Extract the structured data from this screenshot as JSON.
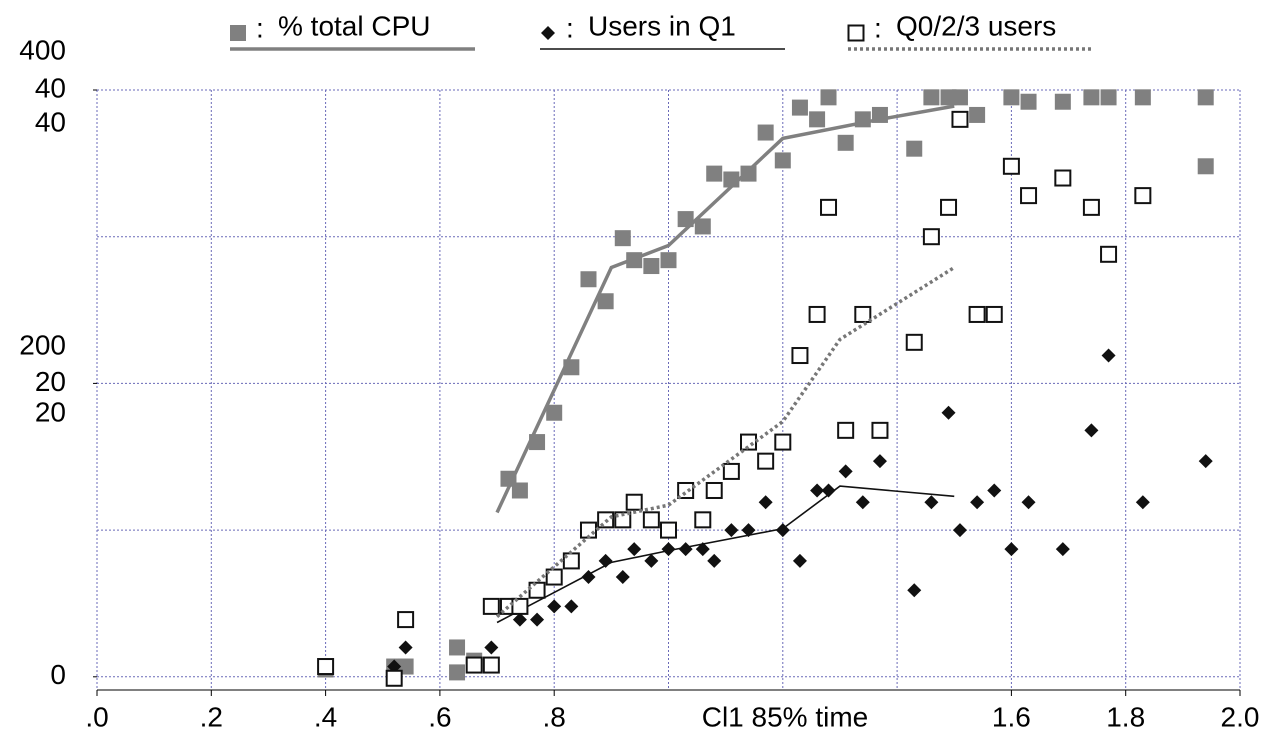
{
  "chart_data": {
    "type": "scatter",
    "xlabel": "Cl1 85% time",
    "xlim": [
      0,
      2
    ],
    "xticks": [
      {
        "value": 0,
        "label": ".0"
      },
      {
        "value": 0.2,
        "label": ".2"
      },
      {
        "value": 0.4,
        "label": ".4"
      },
      {
        "value": 0.6,
        "label": ".6"
      },
      {
        "value": 0.8,
        "label": ".8"
      },
      1.6,
      1.8,
      {
        "value": 2,
        "label": "2.0"
      }
    ],
    "xgrid": [
      0,
      0.2,
      0.4,
      0.6,
      0.8,
      1.0,
      1.2,
      1.4,
      1.6,
      1.8,
      2.0
    ],
    "ylim": [
      -0.9,
      40
    ],
    "yticks": [
      0,
      20,
      40
    ],
    "ygrid": [
      0,
      10,
      20,
      30,
      40
    ],
    "annotations": [
      "400",
      "40",
      "200",
      "20"
    ],
    "legend_separator": ":",
    "series": [
      {
        "name": "% total CPU",
        "color": "#808080",
        "marker": "square-filled",
        "trend_style": "solid-thick",
        "x": [
          0.4,
          0.52,
          0.54,
          0.63,
          0.63,
          0.66,
          0.72,
          0.74,
          0.77,
          0.8,
          0.83,
          0.86,
          0.89,
          0.92,
          0.94,
          0.97,
          1.0,
          1.03,
          1.06,
          1.08,
          1.11,
          1.14,
          1.17,
          1.2,
          1.23,
          1.26,
          1.28,
          1.31,
          1.34,
          1.37,
          1.43,
          1.46,
          1.49,
          1.51,
          1.54,
          1.6,
          1.63,
          1.69,
          1.74,
          1.77,
          1.83,
          1.94,
          1.94
        ],
        "values": [
          0.5,
          0.7,
          0.7,
          2.0,
          0.3,
          1.1,
          13.5,
          12.7,
          16.0,
          18.0,
          21.1,
          27.1,
          25.6,
          29.9,
          28.4,
          28.0,
          28.4,
          31.2,
          30.7,
          34.3,
          33.9,
          34.3,
          37.1,
          35.2,
          38.8,
          38.0,
          39.5,
          36.4,
          38.0,
          38.3,
          36.0,
          39.5,
          39.5,
          39.5,
          38.3,
          39.5,
          39.2,
          39.2,
          39.5,
          39.5,
          39.5,
          39.5,
          34.8
        ],
        "trend": {
          "x": [
            0.7,
            0.9,
            1.0,
            1.2,
            1.37,
            1.5
          ],
          "values": [
            11.2,
            27.9,
            29.4,
            36.7,
            38.0,
            38.9
          ]
        }
      },
      {
        "name": "Users in Q1",
        "color": "#111111",
        "marker": "diamond",
        "trend_style": "solid-thin",
        "x": [
          0.4,
          0.52,
          0.54,
          0.66,
          0.69,
          0.72,
          0.74,
          0.77,
          0.8,
          0.83,
          0.86,
          0.89,
          0.92,
          0.94,
          0.97,
          1.0,
          1.03,
          1.06,
          1.08,
          1.11,
          1.14,
          1.17,
          1.2,
          1.23,
          1.26,
          1.28,
          1.31,
          1.34,
          1.37,
          1.43,
          1.46,
          1.49,
          1.51,
          1.54,
          1.57,
          1.6,
          1.63,
          1.69,
          1.74,
          1.77,
          1.83,
          1.94
        ],
        "values": [
          0.7,
          0.7,
          2.0,
          0.9,
          2.0,
          4.8,
          3.9,
          3.9,
          4.8,
          4.8,
          6.8,
          7.9,
          6.8,
          8.7,
          7.9,
          8.7,
          8.7,
          8.7,
          7.9,
          10.0,
          10.0,
          11.9,
          10.0,
          7.9,
          12.7,
          12.7,
          14.0,
          11.9,
          14.7,
          5.9,
          11.9,
          18.0,
          10.0,
          11.9,
          12.7,
          8.7,
          11.9,
          8.7,
          16.8,
          21.9,
          11.9,
          14.7
        ],
        "trend": {
          "x": [
            0.7,
            0.9,
            1.0,
            1.2,
            1.3,
            1.5
          ],
          "values": [
            3.7,
            7.8,
            8.6,
            10.1,
            13.0,
            12.3
          ]
        }
      },
      {
        "name": "Q0/2/3 users",
        "color": "#111111",
        "marker": "square-open",
        "trend_style": "dotted",
        "x": [
          0.4,
          0.52,
          0.54,
          0.66,
          0.69,
          0.69,
          0.72,
          0.74,
          0.77,
          0.8,
          0.83,
          0.86,
          0.89,
          0.92,
          0.94,
          0.97,
          1.0,
          1.03,
          1.06,
          1.08,
          1.11,
          1.14,
          1.17,
          1.2,
          1.23,
          1.26,
          1.28,
          1.31,
          1.34,
          1.37,
          1.43,
          1.46,
          1.49,
          1.51,
          1.54,
          1.57,
          1.6,
          1.63,
          1.69,
          1.74,
          1.77,
          1.83
        ],
        "values": [
          0.7,
          -0.1,
          3.9,
          0.8,
          0.8,
          4.8,
          4.8,
          4.8,
          5.9,
          6.8,
          7.9,
          10.0,
          10.7,
          10.7,
          11.9,
          10.7,
          10.0,
          12.7,
          10.7,
          12.7,
          14.0,
          16.0,
          14.7,
          16.0,
          21.9,
          24.7,
          32.0,
          16.8,
          24.7,
          16.8,
          22.8,
          30.0,
          32.0,
          38.0,
          24.7,
          24.7,
          34.8,
          32.8,
          34.0,
          32.0,
          28.8,
          32.8
        ],
        "trend": {
          "x": [
            0.7,
            0.9,
            1.0,
            1.2,
            1.3,
            1.5
          ],
          "values": [
            4.1,
            10.9,
            11.7,
            17.4,
            23.0,
            27.9
          ]
        }
      }
    ]
  }
}
